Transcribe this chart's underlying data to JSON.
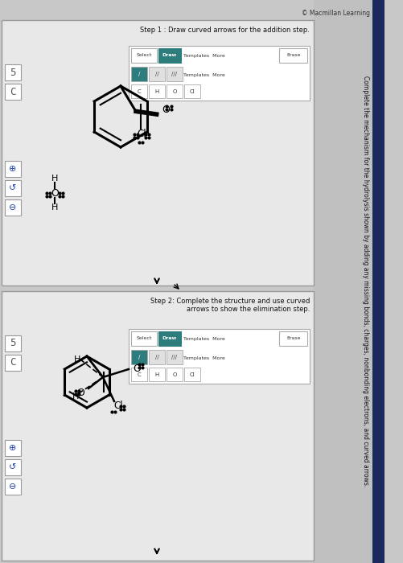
{
  "bg_color": "#c8c8c8",
  "panel_bg": "#e8e8e8",
  "white": "#ffffff",
  "teal": "#2e7d7d",
  "copyright": "© Macmillan Learning",
  "step1_text": "Step 1 : Draw curved arrows for the addition step.",
  "step2_text": "Step 2: Complete the structure and use curved\narrows to show the elimination step.",
  "side_label": "Complete the mechanism for the hydrolysis shown by adding any missing bonds, charges, nonbonding electrons, and curved arrows.",
  "toolbar_labels": [
    "Select",
    "Draw",
    "Templates",
    "More",
    "Erase"
  ],
  "bond_syms": [
    "/",
    "//",
    "///"
  ],
  "elem_btns": [
    "C",
    "H",
    "O",
    "Cl"
  ]
}
